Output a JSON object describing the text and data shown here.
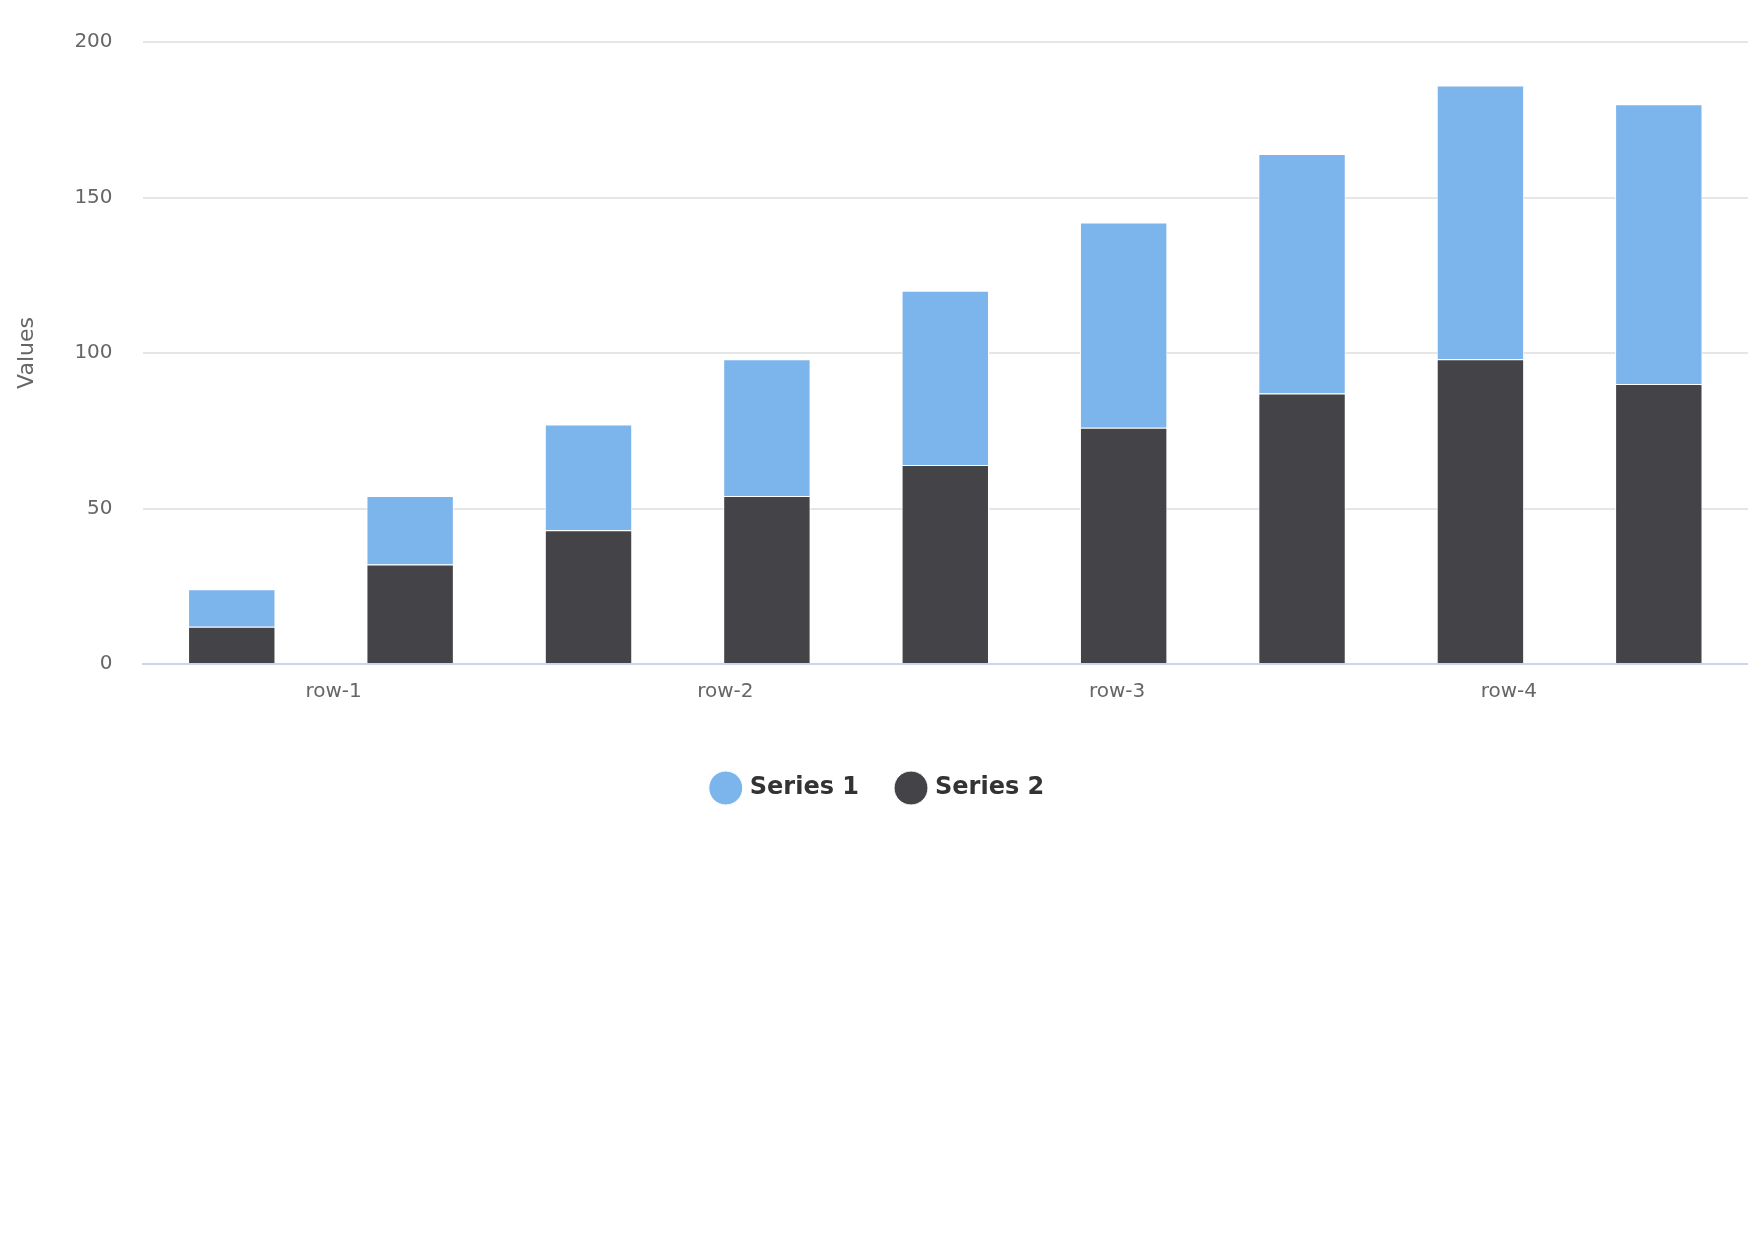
{
  "chart_data": {
    "type": "bar",
    "stacked": true,
    "ylabel": "Values",
    "categories": [
      null,
      null,
      null,
      null,
      null,
      null,
      null,
      null,
      null
    ],
    "series": [
      {
        "name": "Series 1",
        "color": "#7cb5ec",
        "values": [
          12,
          22,
          34,
          44,
          56,
          66,
          77,
          88,
          90
        ]
      },
      {
        "name": "Series 2",
        "color": "#434348",
        "values": [
          12,
          32,
          43,
          54,
          64,
          76,
          87,
          98,
          90
        ]
      }
    ],
    "annotations": [
      "row-1",
      "row-2",
      "row-3",
      "row-4"
    ],
    "ylim": [
      0,
      200
    ],
    "yticks": [
      0,
      50,
      100,
      150,
      200
    ],
    "grid": "y",
    "legend": "bottom"
  }
}
